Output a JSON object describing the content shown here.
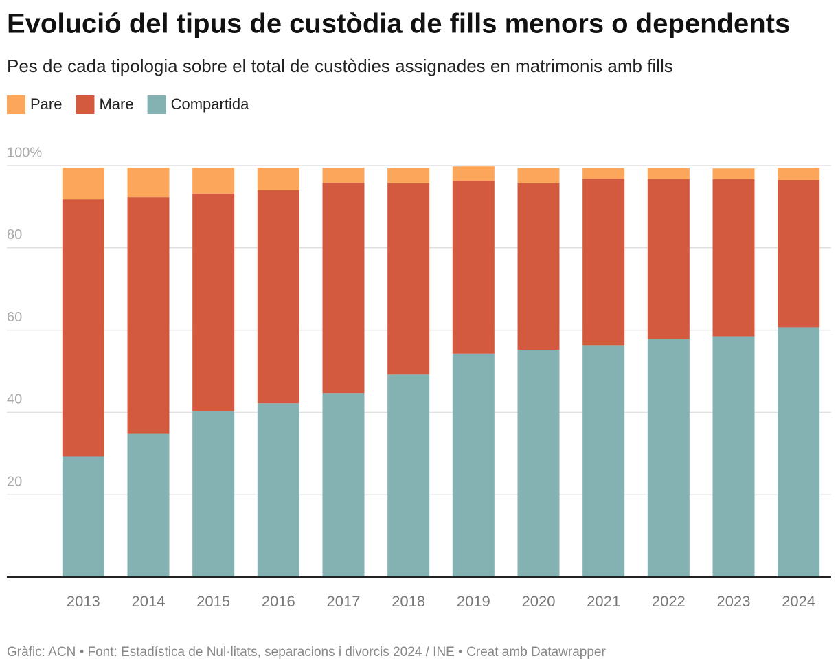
{
  "chart_data": {
    "type": "stacked_bar",
    "title": "Evolució del tipus de custòdia de fills menors o dependents",
    "subtitle": "Pes de cada tipologia sobre el total de custòdies assignades en matrimonis amb fills",
    "source": "Gràfic: ACN • Font: Estadística de Nul·litats, separacions i divorcis 2024 / INE • Creat amb Datawrapper",
    "categories": [
      "2013",
      "2014",
      "2015",
      "2016",
      "2017",
      "2018",
      "2019",
      "2020",
      "2021",
      "2022",
      "2023",
      "2024"
    ],
    "series": [
      {
        "name": "Pare",
        "color": "#fca65b",
        "values": [
          7.7,
          7.2,
          6.3,
          5.5,
          3.7,
          3.8,
          3.5,
          3.8,
          2.7,
          2.8,
          2.6,
          3.0
        ]
      },
      {
        "name": "Mare",
        "color": "#d35a3f",
        "values": [
          62.5,
          57.5,
          52.9,
          51.8,
          51.1,
          46.5,
          42.0,
          40.5,
          40.6,
          38.9,
          38.2,
          35.8
        ]
      },
      {
        "name": "Compartida",
        "color": "#84b1b2",
        "values": [
          29.3,
          34.8,
          40.3,
          42.2,
          44.7,
          49.2,
          54.3,
          55.2,
          56.2,
          57.8,
          58.5,
          60.7
        ]
      }
    ],
    "ylim": [
      0,
      100
    ],
    "yticks": [
      20,
      40,
      60,
      80,
      {
        "value": 100,
        "label": "100%"
      }
    ],
    "grid": true
  }
}
